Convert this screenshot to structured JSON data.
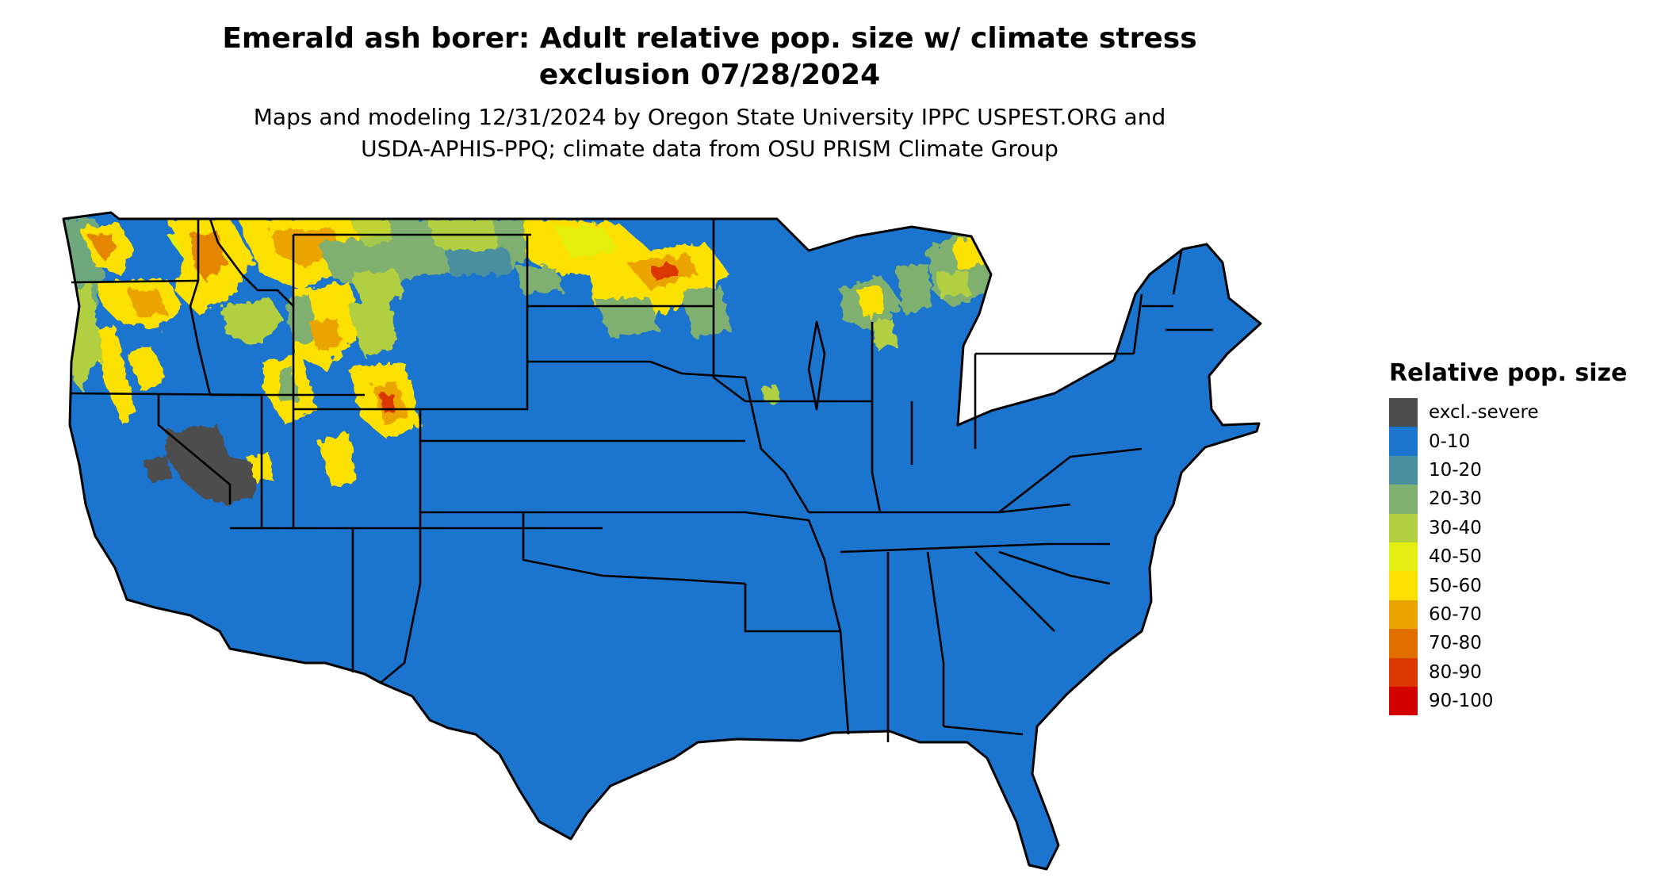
{
  "title_line1": "Emerald ash borer: Adult relative pop. size w/ climate stress",
  "title_line2": "exclusion 07/28/2024",
  "subtitle_line1": "Maps and modeling 12/31/2024 by Oregon State University IPPC USPEST.ORG and",
  "subtitle_line2": "USDA-APHIS-PPQ; climate data from OSU PRISM Climate Group",
  "legend": {
    "title": "Relative pop. size",
    "items": [
      {
        "label": "excl.-severe",
        "color": "#4d4d4d"
      },
      {
        "label": "0-10",
        "color": "#1b74cd"
      },
      {
        "label": "10-20",
        "color": "#4a8fa0"
      },
      {
        "label": "20-30",
        "color": "#7fb070"
      },
      {
        "label": "30-40",
        "color": "#b1cf3f"
      },
      {
        "label": "40-50",
        "color": "#e5ee11"
      },
      {
        "label": "50-60",
        "color": "#fbe000"
      },
      {
        "label": "60-70",
        "color": "#eba300"
      },
      {
        "label": "70-80",
        "color": "#e06f00"
      },
      {
        "label": "80-90",
        "color": "#da3800"
      },
      {
        "label": "90-100",
        "color": "#d30000"
      }
    ]
  },
  "colors": {
    "base": "#1b74cd",
    "excluded": "#4d4d4d",
    "border": "#000000"
  }
}
